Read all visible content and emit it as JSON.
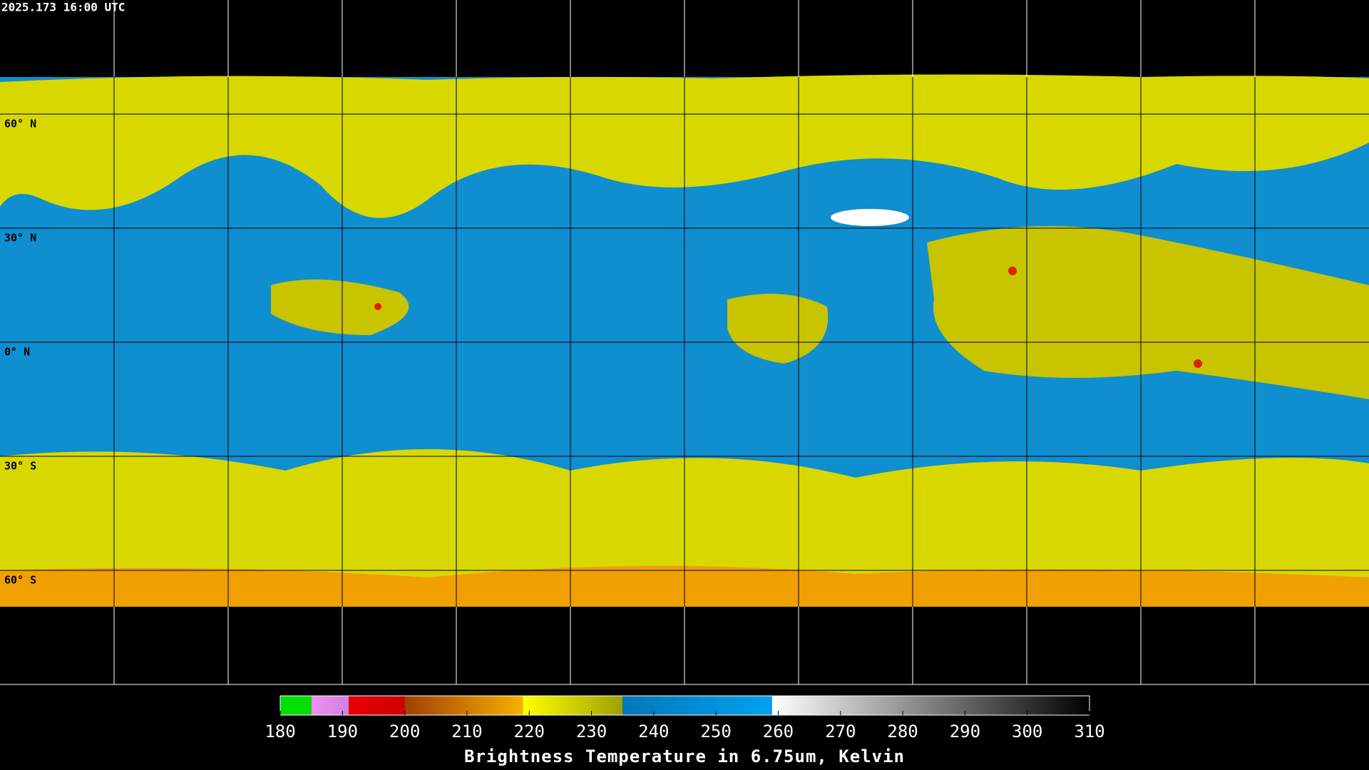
{
  "timestamp": "2025.173 16:00 UTC",
  "lat_labels": [
    "60° N",
    "30° N",
    "0° N",
    "30° S",
    "60° S"
  ],
  "colorbar": {
    "title": "Brightness Temperature in 6.75um, Kelvin",
    "range": [
      180,
      310
    ],
    "ticks": [
      180,
      190,
      200,
      210,
      220,
      230,
      240,
      250,
      260,
      270,
      280,
      290,
      300,
      310
    ],
    "segments": [
      {
        "from": 180,
        "to": 185,
        "colors": [
          "#00e000",
          "#00e000"
        ]
      },
      {
        "from": 185,
        "to": 191,
        "colors": [
          "#f090f0",
          "#d080e0"
        ]
      },
      {
        "from": 191,
        "to": 200,
        "colors": [
          "#e80000",
          "#d00000"
        ]
      },
      {
        "from": 200,
        "to": 219,
        "colors": [
          "#a04000",
          "#f8b000"
        ]
      },
      {
        "from": 219,
        "to": 235,
        "colors": [
          "#ffff00",
          "#a0a000"
        ]
      },
      {
        "from": 235,
        "to": 259,
        "colors": [
          "#0078b8",
          "#00a0f0"
        ]
      },
      {
        "from": 259,
        "to": 310,
        "colors": [
          "#ffffff",
          "#000000"
        ]
      }
    ]
  }
}
